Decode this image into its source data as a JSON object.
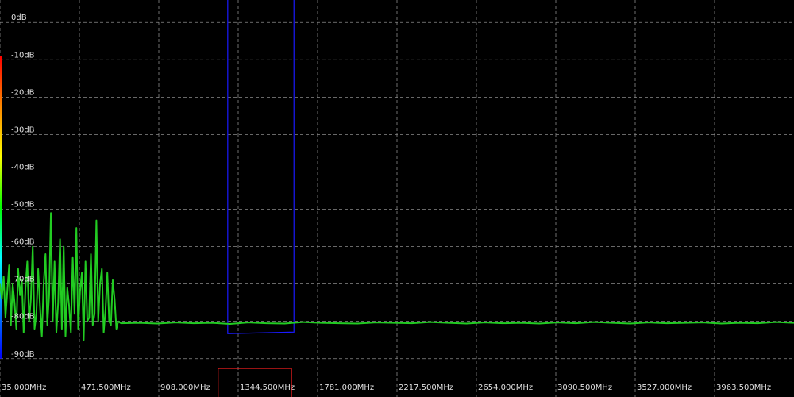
{
  "colors": {
    "background": "#000000",
    "grid": "#8a8a8a",
    "trace": "#22cc22",
    "filter_passband": "#1a1aff",
    "frequency_marker": "#ff2020",
    "text": "#e0e0e0",
    "colorbar": [
      "#ff0000",
      "#ff8800",
      "#ffff00",
      "#00ff00",
      "#00ffff",
      "#0088ff",
      "#0000ff"
    ]
  },
  "chart_data": {
    "type": "line",
    "title": "",
    "xlabel": "",
    "ylabel": "",
    "x_unit": "MHz",
    "y_unit": "dB",
    "xlim": [
      35.0,
      4400.0
    ],
    "ylim": [
      -96.0,
      6.0
    ],
    "grid": true,
    "y_ticks": [
      "0dB",
      "-10dB",
      "-20dB",
      "-30dB",
      "-40dB",
      "-50dB",
      "-60dB",
      "-70dB",
      "-80dB",
      "-90dB"
    ],
    "y_tick_values": [
      0,
      -10,
      -20,
      -30,
      -40,
      -50,
      -60,
      -70,
      -80,
      -90
    ],
    "x_ticks": [
      "35.000MHz",
      "471.500MHz",
      "908.000MHz",
      "1344.500MHz",
      "1781.000MHz",
      "2217.500MHz",
      "2654.000MHz",
      "3090.500MHz",
      "3527.000MHz",
      "3963.500MHz"
    ],
    "x_tick_values": [
      35.0,
      471.5,
      908.0,
      1344.5,
      1781.0,
      2217.5,
      2654.0,
      3090.5,
      3527.0,
      3963.5
    ],
    "filter_band_mhz": [
      1287.0,
      1651.0
    ],
    "filter_floor_db": -83.3,
    "marker_band_mhz": [
      1234.0,
      1637.0
    ],
    "series": [
      {
        "x": [
          35,
          45,
          55,
          65,
          75,
          85,
          95,
          105,
          115,
          125,
          135,
          145,
          155,
          165,
          175,
          185,
          195,
          205,
          215,
          225,
          235,
          245,
          255,
          265,
          275,
          285,
          295,
          305,
          315,
          325,
          335,
          345,
          355,
          365,
          375,
          385,
          395,
          405,
          415,
          425,
          435,
          445,
          455,
          465,
          475,
          485,
          495,
          505,
          515,
          525,
          535,
          545,
          555,
          565,
          575,
          585,
          595,
          605,
          615,
          625,
          635,
          645,
          655,
          665,
          675,
          685,
          700,
          800,
          900,
          1000,
          1100,
          1200,
          1300,
          1400,
          1500,
          1600,
          1700,
          1800,
          1900,
          2000,
          2100,
          2200,
          2300,
          2400,
          2500,
          2600,
          2700,
          2800,
          2900,
          3000,
          3100,
          3200,
          3300,
          3400,
          3500,
          3600,
          3700,
          3800,
          3900,
          4000,
          4100,
          4200,
          4300,
          4400
        ],
        "y": [
          -70,
          -74,
          -68,
          -79,
          -72,
          -65,
          -81,
          -70,
          -75,
          -82,
          -66,
          -73,
          -69,
          -83,
          -71,
          -64,
          -80,
          -74,
          -60,
          -82,
          -78,
          -66,
          -76,
          -84,
          -70,
          -62,
          -81,
          -73,
          -51,
          -80,
          -64,
          -83,
          -75,
          -58,
          -82,
          -60,
          -84,
          -71,
          -76,
          -83,
          -63,
          -78,
          -55,
          -82,
          -72,
          -67,
          -85,
          -64,
          -80,
          -79,
          -62,
          -81,
          -78,
          -53,
          -80,
          -70,
          -66,
          -83,
          -77,
          -67,
          -80,
          -81,
          -69,
          -74,
          -82,
          -80,
          -80.5,
          -80.4,
          -80.6,
          -80.3,
          -80.5,
          -80.4,
          -80.7,
          -80.3,
          -80.5,
          -80.6,
          -80.2,
          -80.4,
          -80.5,
          -80.6,
          -80.3,
          -80.4,
          -80.5,
          -80.2,
          -80.4,
          -80.6,
          -80.3,
          -80.5,
          -80.4,
          -80.6,
          -80.3,
          -80.5,
          -80.2,
          -80.4,
          -80.6,
          -80.3,
          -80.5,
          -80.4,
          -80.3,
          -80.6,
          -80.4,
          -80.5,
          -80.2,
          -80.4
        ]
      }
    ]
  }
}
